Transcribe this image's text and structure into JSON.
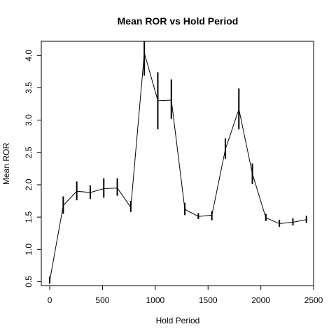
{
  "chart_data": {
    "type": "line",
    "title": "Mean ROR vs Hold Period",
    "xlabel": "Hold Period",
    "ylabel": "Mean ROR",
    "xlim": [
      -80,
      2500
    ],
    "ylim": [
      0.44,
      4.22
    ],
    "xticks": [
      0,
      500,
      1000,
      1500,
      2000,
      2500
    ],
    "yticks": [
      0.5,
      1.0,
      1.5,
      2.0,
      2.5,
      3.0,
      3.5,
      4.0
    ],
    "ytick_labels": [
      "0.5",
      "1.0",
      "1.5",
      "2.0",
      "2.5",
      "3.0",
      "3.5",
      "4.0"
    ],
    "grid": false,
    "series": [
      {
        "x": [
          0,
          128,
          256,
          384,
          512,
          640,
          768,
          896,
          1024,
          1152,
          1280,
          1408,
          1536,
          1664,
          1792,
          1920,
          2048,
          2176,
          2304,
          2432
        ],
        "y": [
          0.52,
          1.68,
          1.9,
          1.88,
          1.94,
          1.95,
          1.65,
          4.04,
          3.3,
          3.31,
          1.62,
          1.51,
          1.53,
          2.55,
          3.17,
          2.17,
          1.49,
          1.4,
          1.42,
          1.46
        ],
        "err_low": [
          0.47,
          1.55,
          1.76,
          1.78,
          1.8,
          1.83,
          1.58,
          3.69,
          2.86,
          3.02,
          1.53,
          1.47,
          1.45,
          2.4,
          2.86,
          2.01,
          1.44,
          1.35,
          1.37,
          1.41
        ],
        "err_high": [
          0.58,
          1.82,
          2.05,
          1.99,
          2.1,
          2.1,
          1.75,
          4.22,
          3.74,
          3.63,
          1.72,
          1.56,
          1.59,
          2.72,
          3.49,
          2.33,
          1.55,
          1.46,
          1.48,
          1.52
        ]
      }
    ]
  }
}
